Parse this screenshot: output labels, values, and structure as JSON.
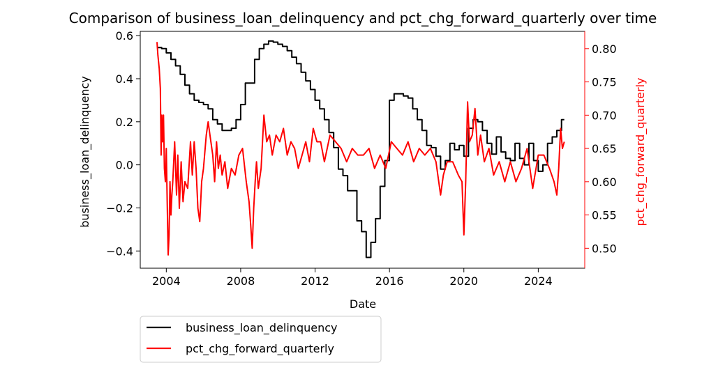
{
  "chart_data": {
    "type": "line",
    "title": "Comparison of business_loan_delinquency and pct_chg_forward_quarterly over time",
    "xlabel": "Date",
    "ylabel_left": "business_loan_delinquency",
    "ylabel_right": "pct_chg_forward_quarterly",
    "xlim": [
      2002.6,
      2026.5
    ],
    "ylim_left": [
      -0.48,
      0.62
    ],
    "ylim_right": [
      0.47,
      0.826
    ],
    "x_ticks": [
      2004,
      2008,
      2012,
      2016,
      2020,
      2024
    ],
    "x_tick_labels": [
      "2004",
      "2008",
      "2012",
      "2016",
      "2020",
      "2024"
    ],
    "y_left_ticks": [
      -0.4,
      -0.2,
      0.0,
      0.2,
      0.4,
      0.6
    ],
    "y_left_tick_labels": [
      "−0.4",
      "−0.2",
      "0.0",
      "0.2",
      "0.4",
      "0.6"
    ],
    "y_right_ticks": [
      0.5,
      0.55,
      0.6,
      0.65,
      0.7,
      0.75,
      0.8
    ],
    "y_right_tick_labels": [
      "0.50",
      "0.55",
      "0.60",
      "0.65",
      "0.70",
      "0.75",
      "0.80"
    ],
    "grid": false,
    "legend_position": "below-left",
    "series": [
      {
        "name": "business_loan_delinquency",
        "axis": "left",
        "color": "#000000",
        "step": true,
        "x": [
          2003.5,
          2003.75,
          2004.0,
          2004.25,
          2004.5,
          2004.75,
          2005.0,
          2005.25,
          2005.5,
          2005.75,
          2006.0,
          2006.25,
          2006.5,
          2006.75,
          2007.0,
          2007.25,
          2007.5,
          2007.75,
          2008.0,
          2008.25,
          2008.5,
          2008.75,
          2009.0,
          2009.25,
          2009.5,
          2009.75,
          2010.0,
          2010.25,
          2010.5,
          2010.75,
          2011.0,
          2011.25,
          2011.5,
          2011.75,
          2012.0,
          2012.25,
          2012.5,
          2012.75,
          2013.0,
          2013.25,
          2013.5,
          2013.75,
          2014.0,
          2014.25,
          2014.5,
          2014.75,
          2015.0,
          2015.25,
          2015.5,
          2015.75,
          2016.0,
          2016.25,
          2016.5,
          2016.75,
          2017.0,
          2017.25,
          2017.5,
          2017.75,
          2018.0,
          2018.25,
          2018.5,
          2018.75,
          2019.0,
          2019.25,
          2019.5,
          2019.75,
          2020.0,
          2020.25,
          2020.5,
          2020.75,
          2021.0,
          2021.25,
          2021.5,
          2021.75,
          2022.0,
          2022.25,
          2022.5,
          2022.75,
          2023.0,
          2023.25,
          2023.5,
          2023.75,
          2024.0,
          2024.25,
          2024.5,
          2024.75,
          2025.0,
          2025.25,
          2025.4
        ],
        "y": [
          0.545,
          0.54,
          0.52,
          0.49,
          0.46,
          0.42,
          0.37,
          0.33,
          0.3,
          0.29,
          0.28,
          0.26,
          0.21,
          0.19,
          0.16,
          0.16,
          0.17,
          0.21,
          0.28,
          0.38,
          0.38,
          0.49,
          0.54,
          0.56,
          0.575,
          0.57,
          0.56,
          0.55,
          0.53,
          0.5,
          0.47,
          0.43,
          0.39,
          0.35,
          0.3,
          0.26,
          0.21,
          0.15,
          0.08,
          -0.02,
          -0.05,
          -0.12,
          -0.12,
          -0.26,
          -0.31,
          -0.43,
          -0.36,
          -0.25,
          -0.1,
          0.02,
          0.3,
          0.33,
          0.33,
          0.32,
          0.31,
          0.26,
          0.21,
          0.16,
          0.09,
          0.08,
          0.04,
          -0.02,
          0.02,
          0.1,
          0.07,
          0.09,
          0.04,
          0.17,
          0.21,
          0.2,
          0.16,
          0.1,
          0.05,
          0.13,
          0.06,
          0.03,
          0.02,
          0.1,
          0.03,
          0.0,
          0.1,
          0.02,
          -0.03,
          0.0,
          0.1,
          0.13,
          0.16,
          0.21,
          0.21
        ]
      },
      {
        "name": "pct_chg_forward_quarterly",
        "axis": "right",
        "color": "#ff0000",
        "step": false,
        "x": [
          2003.5,
          2003.55,
          2003.62,
          2003.68,
          2003.72,
          2003.76,
          2003.8,
          2003.85,
          2003.9,
          2003.95,
          2004.0,
          2004.05,
          2004.1,
          2004.15,
          2004.2,
          2004.25,
          2004.3,
          2004.35,
          2004.45,
          2004.55,
          2004.62,
          2004.7,
          2004.8,
          2004.9,
          2005.0,
          2005.15,
          2005.3,
          2005.4,
          2005.5,
          2005.6,
          2005.7,
          2005.8,
          2005.9,
          2006.0,
          2006.15,
          2006.25,
          2006.35,
          2006.5,
          2006.6,
          2006.7,
          2006.8,
          2006.9,
          2007.0,
          2007.15,
          2007.3,
          2007.5,
          2007.7,
          2007.9,
          2008.1,
          2008.3,
          2008.45,
          2008.55,
          2008.62,
          2008.7,
          2008.78,
          2008.85,
          2008.95,
          2009.1,
          2009.25,
          2009.4,
          2009.55,
          2009.7,
          2009.9,
          2010.1,
          2010.3,
          2010.5,
          2010.7,
          2010.9,
          2011.1,
          2011.3,
          2011.5,
          2011.7,
          2011.9,
          2012.1,
          2012.3,
          2012.5,
          2012.8,
          2013.1,
          2013.4,
          2013.7,
          2014.0,
          2014.3,
          2014.6,
          2014.9,
          2015.2,
          2015.5,
          2015.8,
          2016.1,
          2016.4,
          2016.7,
          2017.0,
          2017.3,
          2017.6,
          2017.9,
          2018.2,
          2018.5,
          2018.75,
          2018.9,
          2019.1,
          2019.4,
          2019.7,
          2019.9,
          2020.0,
          2020.1,
          2020.2,
          2020.3,
          2020.45,
          2020.6,
          2020.75,
          2020.9,
          2021.1,
          2021.35,
          2021.6,
          2021.9,
          2022.2,
          2022.5,
          2022.8,
          2023.1,
          2023.4,
          2023.7,
          2024.0,
          2024.3,
          2024.6,
          2024.85,
          2025.0,
          2025.1,
          2025.2,
          2025.3,
          2025.4
        ],
        "y": [
          0.81,
          0.79,
          0.77,
          0.74,
          0.64,
          0.7,
          0.66,
          0.7,
          0.62,
          0.6,
          0.65,
          0.57,
          0.49,
          0.52,
          0.6,
          0.55,
          0.58,
          0.6,
          0.66,
          0.58,
          0.64,
          0.56,
          0.63,
          0.57,
          0.6,
          0.59,
          0.66,
          0.61,
          0.66,
          0.62,
          0.56,
          0.54,
          0.6,
          0.62,
          0.67,
          0.69,
          0.67,
          0.64,
          0.6,
          0.66,
          0.62,
          0.64,
          0.61,
          0.63,
          0.59,
          0.62,
          0.61,
          0.64,
          0.65,
          0.6,
          0.57,
          0.53,
          0.5,
          0.56,
          0.6,
          0.63,
          0.59,
          0.62,
          0.7,
          0.66,
          0.67,
          0.64,
          0.67,
          0.66,
          0.68,
          0.64,
          0.66,
          0.65,
          0.62,
          0.64,
          0.66,
          0.63,
          0.68,
          0.66,
          0.66,
          0.63,
          0.67,
          0.66,
          0.65,
          0.63,
          0.65,
          0.64,
          0.64,
          0.65,
          0.62,
          0.64,
          0.62,
          0.66,
          0.65,
          0.64,
          0.66,
          0.63,
          0.65,
          0.64,
          0.65,
          0.63,
          0.58,
          0.61,
          0.63,
          0.63,
          0.61,
          0.6,
          0.52,
          0.6,
          0.72,
          0.66,
          0.67,
          0.71,
          0.64,
          0.67,
          0.63,
          0.65,
          0.61,
          0.63,
          0.6,
          0.63,
          0.6,
          0.62,
          0.65,
          0.59,
          0.64,
          0.64,
          0.62,
          0.6,
          0.58,
          0.62,
          0.68,
          0.65,
          0.66
        ]
      }
    ]
  }
}
